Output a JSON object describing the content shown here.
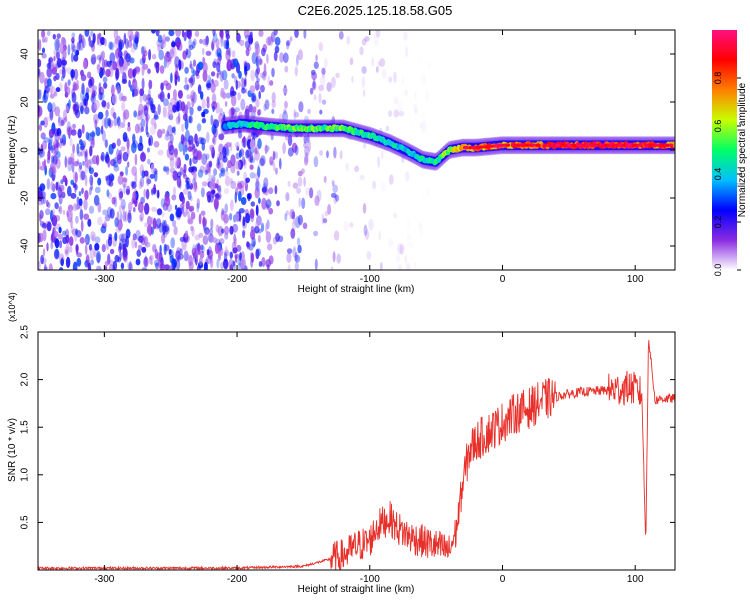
{
  "title": "C2E6.2025.125.18.58.G05",
  "chart_data": [
    {
      "type": "heatmap",
      "xlabel": "Height of straight line (km)",
      "ylabel": "Frequency (Hz)",
      "xlim": [
        -350,
        130
      ],
      "ylim": [
        -50,
        50
      ],
      "xticks": [
        -300,
        -200,
        -100,
        0,
        100
      ],
      "yticks": [
        -40,
        -20,
        0,
        20,
        40
      ],
      "colorbar": {
        "label": "Normalized spectral amplitude",
        "range": [
          0,
          1
        ],
        "ticks": [
          "0.0",
          "0.2",
          "0.4",
          "0.6",
          "0.8"
        ],
        "colors": [
          "#ffffff",
          "#8a2be2",
          "#0000ff",
          "#00c0ff",
          "#00ff66",
          "#c8ff00",
          "#ff8000",
          "#ff0000",
          "#ff1080"
        ]
      },
      "ridge": {
        "x": [
          -210,
          -195,
          -180,
          -160,
          -140,
          -120,
          -100,
          -85,
          -70,
          -60,
          -50,
          -40,
          -30,
          -20,
          0,
          20,
          50,
          80,
          100,
          110,
          130
        ],
        "y": [
          10,
          11,
          10,
          9,
          9,
          9,
          6,
          3,
          -1,
          -4,
          -5,
          0,
          1,
          1,
          2,
          2,
          2,
          2,
          2,
          2,
          2
        ],
        "amplitude": [
          0.35,
          0.45,
          0.5,
          0.55,
          0.55,
          0.55,
          0.5,
          0.45,
          0.4,
          0.45,
          0.5,
          0.6,
          0.7,
          0.8,
          0.8,
          0.85,
          0.9,
          0.95,
          0.9,
          0.9,
          0.8
        ]
      },
      "noise_region_x": [
        -350,
        -185
      ]
    },
    {
      "type": "line",
      "xlabel": "Height of straight line (km)",
      "ylabel": "SNR (10 * v/v)",
      "y_multiplier": "(x10^4)",
      "xlim": [
        -350,
        130
      ],
      "ylim": [
        0,
        2.5
      ],
      "xticks": [
        -300,
        -200,
        -100,
        0,
        100
      ],
      "yticks": [
        "0.5",
        "1.0",
        "1.5",
        "2.0",
        "2.5"
      ],
      "color": "#e8302a",
      "series": [
        {
          "x": [
            -350,
            -300,
            -250,
            -200,
            -150,
            -120,
            -110,
            -100,
            -95,
            -90,
            -85,
            -80,
            -70,
            -60,
            -50,
            -40,
            -35,
            -30,
            -25,
            -20,
            -10,
            0,
            10,
            20,
            30,
            40,
            50,
            60,
            70,
            80,
            90,
            95,
            100,
            105,
            108,
            110,
            115,
            120,
            130
          ],
          "y": [
            0.02,
            0.02,
            0.02,
            0.02,
            0.04,
            0.15,
            0.25,
            0.3,
            0.45,
            0.5,
            0.55,
            0.45,
            0.35,
            0.3,
            0.25,
            0.2,
            0.4,
            0.9,
            1.25,
            1.35,
            1.45,
            1.55,
            1.65,
            1.7,
            1.78,
            1.82,
            1.85,
            1.87,
            1.88,
            1.89,
            1.9,
            1.92,
            1.9,
            1.85,
            0.25,
            2.45,
            1.78,
            1.8,
            1.8
          ]
        }
      ]
    }
  ]
}
